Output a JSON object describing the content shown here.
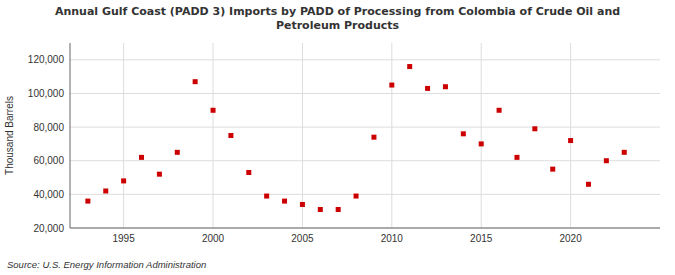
{
  "chart_data": {
    "type": "scatter",
    "title": "Annual Gulf Coast (PADD 3) Imports by PADD of Processing from Colombia of Crude Oil and\nPetroleum Products",
    "y_label": "Thousand Barrels",
    "annotation": "Source: U.S. Energy Information Administration",
    "x": [
      1993,
      1994,
      1995,
      1996,
      1997,
      1998,
      1999,
      2000,
      2001,
      2002,
      2003,
      2004,
      2005,
      2006,
      2007,
      2008,
      2009,
      2010,
      2011,
      2012,
      2013,
      2014,
      2015,
      2016,
      2017,
      2018,
      2019,
      2020,
      2021,
      2022,
      2023
    ],
    "values": [
      36000,
      42000,
      48000,
      62000,
      52000,
      65000,
      107000,
      90000,
      75000,
      53000,
      39000,
      36000,
      34000,
      31000,
      31000,
      39000,
      74000,
      105000,
      116000,
      103000,
      104000,
      76000,
      70000,
      90000,
      62000,
      79000,
      55000,
      72000,
      46000,
      60000,
      65000
    ],
    "color": "#cc0000",
    "marker": "square",
    "xlim": [
      1992,
      2025
    ],
    "ylim": [
      20000,
      130000
    ],
    "xticks": [
      1995,
      2000,
      2005,
      2010,
      2015,
      2020
    ],
    "yticks": [
      {
        "value": 20000,
        "label": "20,000"
      },
      {
        "value": 40000,
        "label": "40,000"
      },
      {
        "value": 60000,
        "label": "60,000"
      },
      {
        "value": 80000,
        "label": "80,000"
      },
      {
        "value": 100000,
        "label": "100,000"
      },
      {
        "value": 120000,
        "label": "120,000"
      }
    ],
    "grid": true
  }
}
